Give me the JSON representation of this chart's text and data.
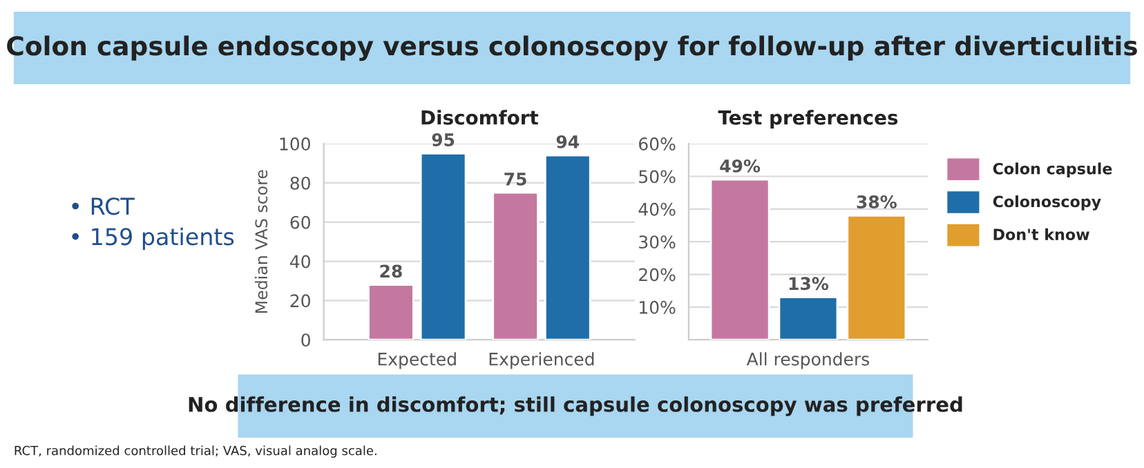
{
  "chart_data": [
    {
      "type": "other",
      "title": "Colon capsule endoscopy versus colonoscopy for follow-up after diverticulitis",
      "annotations": [
        "• RCT",
        "• 159 patients",
        "No difference in discomfort; still capsule colonoscopy was preferred",
        "RCT, randomized controlled trial; VAS, visual analog scale."
      ]
    },
    {
      "type": "bar",
      "title": "Discomfort",
      "ylabel": "Median VAS score",
      "categories": [
        "Expected",
        "Experienced"
      ],
      "series": [
        {
          "color": "#c5789f",
          "values": [
            28,
            75
          ]
        },
        {
          "color": "#1f6ea8",
          "values": [
            95,
            94
          ]
        }
      ],
      "ylim": [
        0,
        100
      ],
      "yticks": [
        0,
        20,
        40,
        60,
        80,
        100
      ],
      "grid": "y",
      "data_labels": true
    },
    {
      "type": "bar",
      "title": "Test preferences",
      "categories": [
        null,
        "All responders",
        null
      ],
      "series": [
        {
          "name": "Colon capsule",
          "color": "#c5789f",
          "values": [
            49,
            null,
            null
          ],
          "value_labels": [
            "49%",
            null,
            null
          ]
        },
        {
          "name": "Colonoscopy",
          "color": "#1f6ea8",
          "values": [
            null,
            13,
            null
          ],
          "value_labels": [
            null,
            "13%",
            null
          ]
        },
        {
          "name": "Don't know",
          "color": "#e09e2e",
          "values": [
            null,
            null,
            38
          ],
          "value_labels": [
            null,
            null,
            "38%"
          ]
        }
      ],
      "ylim": [
        0,
        60
      ],
      "yticks": [
        {
          "value": 0,
          "label": null
        },
        {
          "value": 10,
          "label": "10%"
        },
        {
          "value": 20,
          "label": "20%"
        },
        {
          "value": 30,
          "label": "30%"
        },
        {
          "value": 40,
          "label": "40%"
        },
        {
          "value": 50,
          "label": "50%"
        },
        {
          "value": 60,
          "label": "60%"
        }
      ],
      "grid": "y",
      "legend": "right"
    }
  ]
}
